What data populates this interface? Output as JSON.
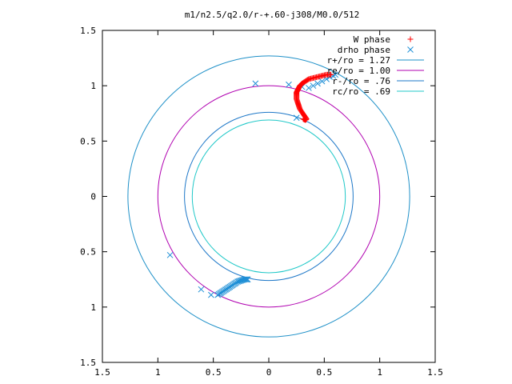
{
  "chart_data": {
    "type": "scatter",
    "title": "m1/n2.5/q2.0/r-+.60-j308/M0.0/512",
    "xlabel": "",
    "ylabel": "",
    "xlim": [
      -1.5,
      1.5
    ],
    "ylim": [
      -1.5,
      1.5
    ],
    "x_ticks": [
      -1.5,
      -1,
      -0.5,
      0,
      0.5,
      1,
      1.5
    ],
    "x_tick_labels": [
      "1.5",
      "1",
      "0.5",
      "0",
      "0.5",
      "1",
      "1.5"
    ],
    "y_ticks": [
      1.5,
      1,
      0.5,
      0,
      -0.5,
      -1,
      -1.5
    ],
    "y_tick_labels": [
      "1.5",
      "1",
      "0.5",
      "0",
      "0.5",
      "1",
      "1.5"
    ],
    "grid": false,
    "legend_position": "top-right",
    "circles": [
      {
        "name": "r+/ro = 1.27",
        "radius": 1.27,
        "color": "#1e90c8"
      },
      {
        "name": "re/ro = 1.00",
        "radius": 1.0,
        "color": "#b000b0"
      },
      {
        "name": "r-/ro = .76",
        "radius": 0.76,
        "color": "#1e78c8"
      },
      {
        "name": "rc/ro = .69",
        "radius": 0.69,
        "color": "#20c8c8"
      }
    ],
    "series": [
      {
        "name": "W phase",
        "marker": "plus",
        "color": "#ff0000",
        "points": [
          [
            0.31,
            0.7
          ],
          [
            0.33,
            0.69
          ],
          [
            0.34,
            0.7
          ],
          [
            0.32,
            0.73
          ],
          [
            0.3,
            0.76
          ],
          [
            0.28,
            0.79
          ],
          [
            0.27,
            0.82
          ],
          [
            0.26,
            0.85
          ],
          [
            0.25,
            0.88
          ],
          [
            0.25,
            0.91
          ],
          [
            0.25,
            0.94
          ],
          [
            0.26,
            0.96
          ],
          [
            0.27,
            0.98
          ],
          [
            0.28,
            1.0
          ],
          [
            0.3,
            1.02
          ],
          [
            0.33,
            1.04
          ],
          [
            0.36,
            1.06
          ],
          [
            0.4,
            1.07
          ],
          [
            0.44,
            1.08
          ],
          [
            0.48,
            1.09
          ],
          [
            0.52,
            1.1
          ],
          [
            0.56,
            1.1
          ]
        ]
      },
      {
        "name": "drho phase",
        "marker": "x",
        "color": "#1e8fd6",
        "points": [
          [
            -0.12,
            1.02
          ],
          [
            0.18,
            1.01
          ],
          [
            0.3,
            0.99
          ],
          [
            0.36,
            0.98
          ],
          [
            0.4,
            1.0
          ],
          [
            0.44,
            1.02
          ],
          [
            0.48,
            1.04
          ],
          [
            0.52,
            1.06
          ],
          [
            0.55,
            1.08
          ],
          [
            0.58,
            1.09
          ],
          [
            0.6,
            1.1
          ],
          [
            0.25,
            0.71
          ],
          [
            -0.89,
            -0.53
          ],
          [
            -0.61,
            -0.84
          ],
          [
            -0.52,
            -0.89
          ],
          [
            -0.46,
            -0.89
          ],
          [
            -0.43,
            -0.87
          ],
          [
            -0.4,
            -0.85
          ],
          [
            -0.37,
            -0.83
          ],
          [
            -0.34,
            -0.81
          ],
          [
            -0.31,
            -0.79
          ],
          [
            -0.28,
            -0.77
          ],
          [
            -0.25,
            -0.76
          ],
          [
            -0.22,
            -0.75
          ],
          [
            -0.19,
            -0.75
          ]
        ]
      }
    ]
  }
}
